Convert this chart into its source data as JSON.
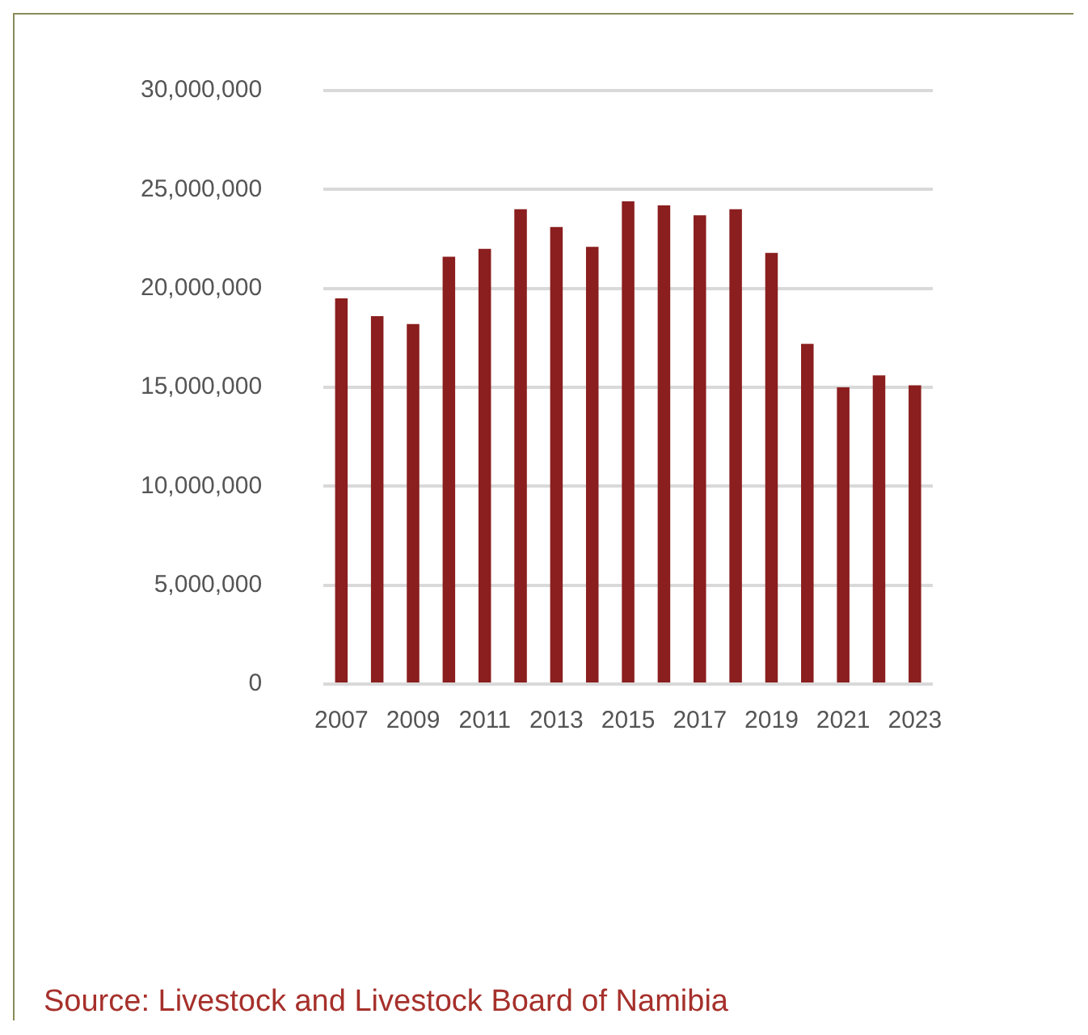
{
  "chart_data": {
    "type": "bar",
    "categories": [
      "2007",
      null,
      "2009",
      null,
      "2011",
      null,
      "2013",
      null,
      "2015",
      null,
      "2017",
      null,
      "2019",
      null,
      "2021",
      null,
      "2023"
    ],
    "values": [
      19500000,
      18600000,
      18200000,
      21600000,
      22000000,
      24000000,
      23100000,
      22100000,
      24400000,
      24200000,
      23700000,
      24000000,
      21800000,
      17200000,
      15000000,
      15600000,
      15100000
    ],
    "color": "#8b1e1e",
    "ylim": [
      0,
      30000000
    ],
    "yticks": [
      0,
      {
        "value": 5000000,
        "label": "5,000,000"
      },
      {
        "value": 10000000,
        "label": "10,000,000"
      },
      {
        "value": 15000000,
        "label": "15,000,000"
      },
      {
        "value": 20000000,
        "label": "20,000,000"
      },
      {
        "value": 25000000,
        "label": "25,000,000"
      },
      {
        "value": 30000000,
        "label": "30,000,000"
      }
    ],
    "grid": "y",
    "legend": false,
    "annotations": [
      "Source: Livestock and Livestock Board of Namibia"
    ]
  }
}
